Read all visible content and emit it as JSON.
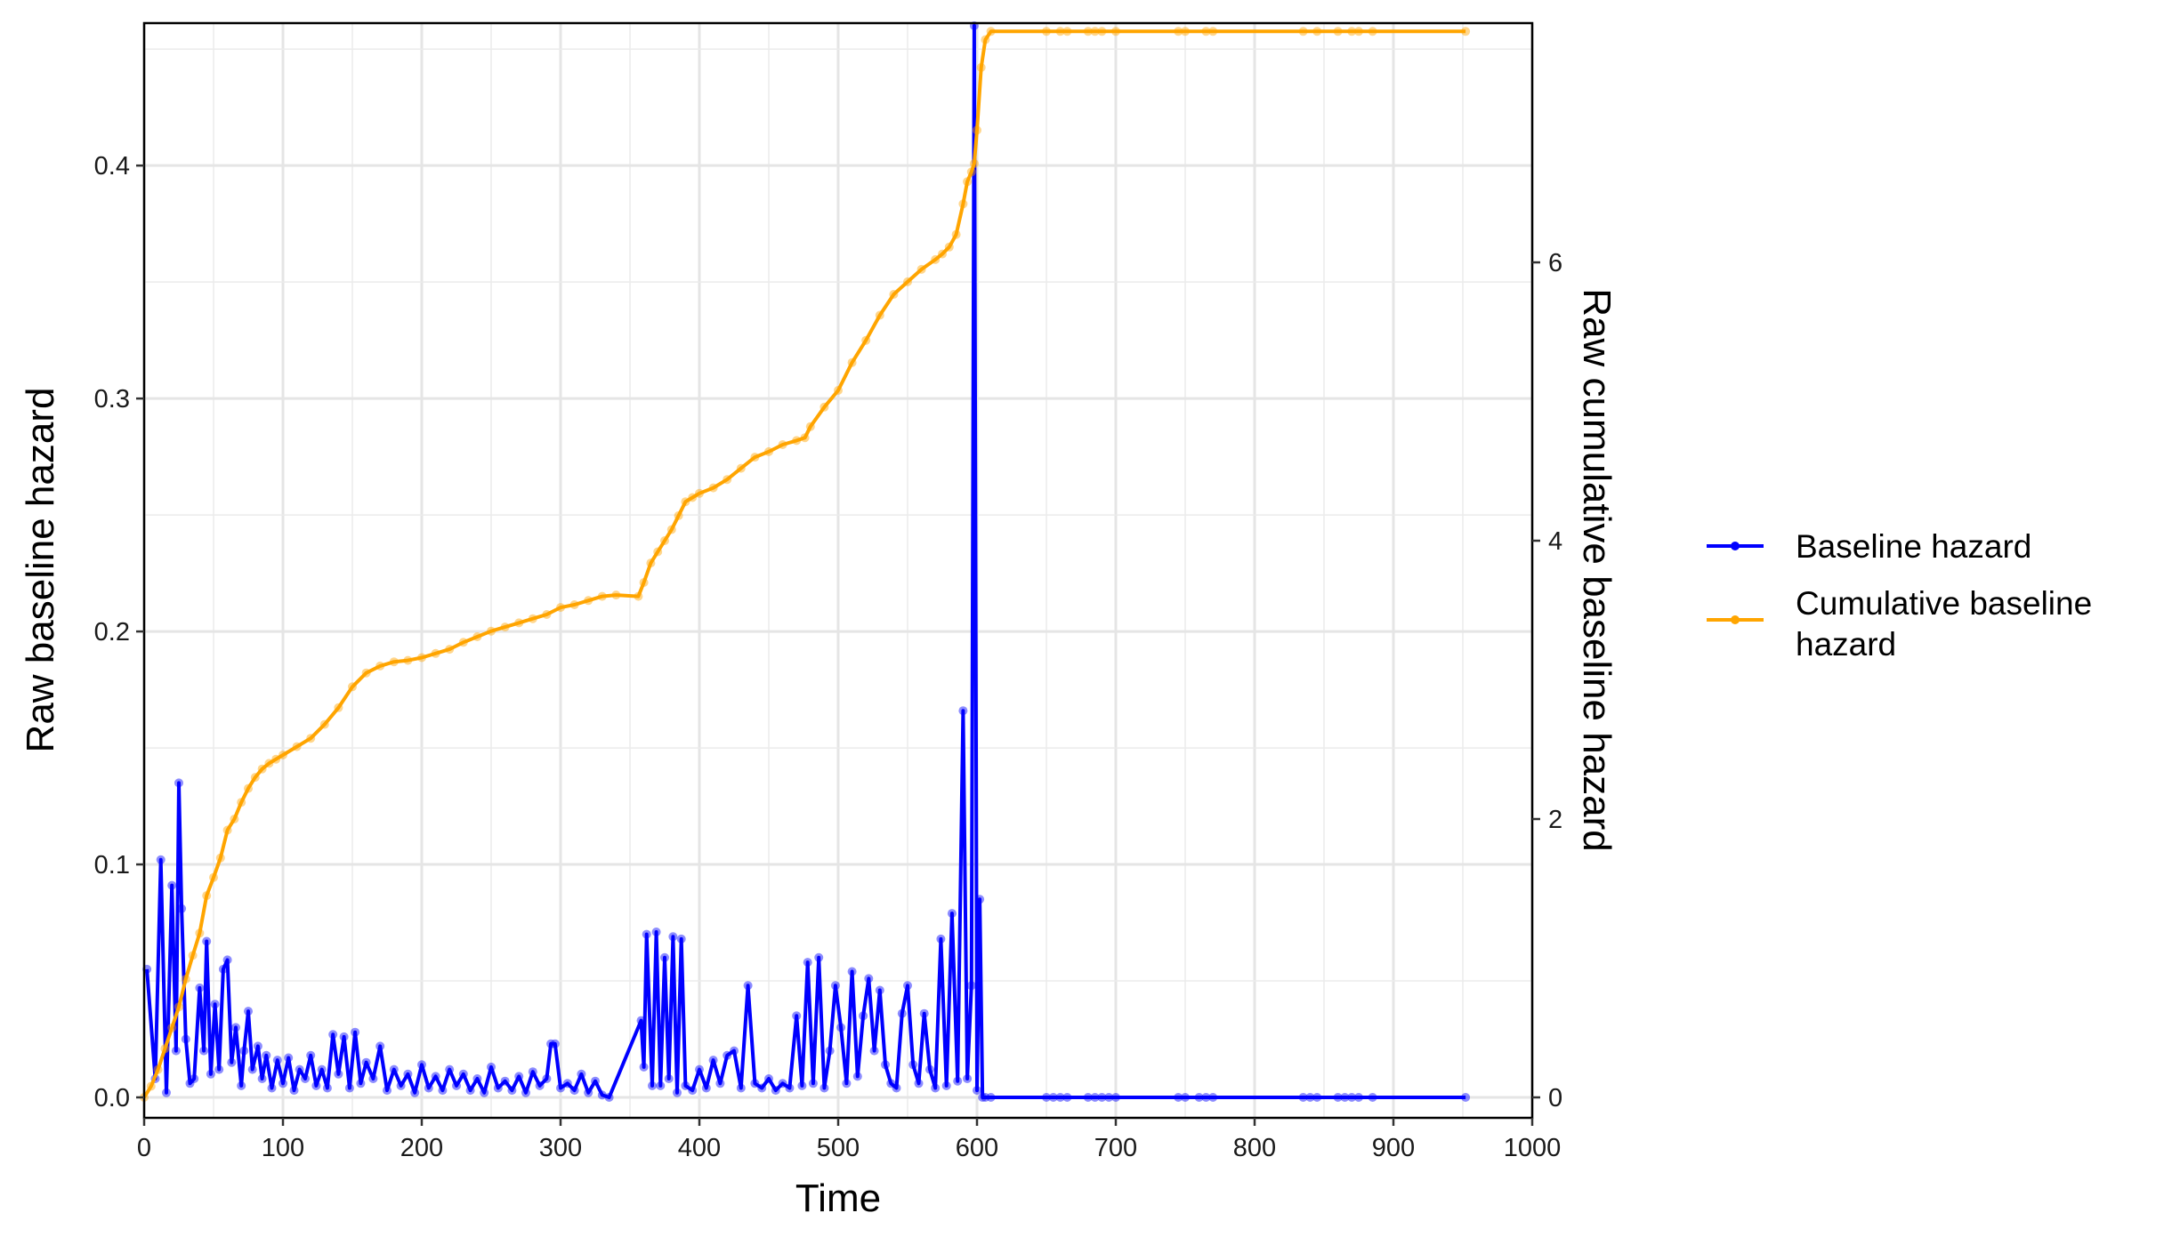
{
  "chart_data": {
    "type": "line",
    "title": "",
    "xlabel": "Time",
    "ylabel": "Raw baseline hazard",
    "y2label": "Raw cumulative baseline hazard",
    "xlim": [
      0,
      1000
    ],
    "ylim": [
      0,
      0.46
    ],
    "y2lim": [
      0,
      7.7
    ],
    "x_ticks": [
      0,
      100,
      200,
      300,
      400,
      500,
      600,
      700,
      800,
      900,
      1000
    ],
    "y_ticks": [
      0.0,
      0.1,
      0.2,
      0.3,
      0.4
    ],
    "y_tick_labels": [
      "0.0",
      "0.1",
      "0.2",
      "0.3",
      "0.4"
    ],
    "y2_ticks": [
      0,
      2,
      4,
      6
    ],
    "grid": true,
    "legend_position": "right",
    "series": [
      {
        "name": "Baseline hazard",
        "axis": "left",
        "color": "#0000ff",
        "x": [
          2,
          8,
          12,
          16,
          20,
          23,
          25,
          27,
          30,
          33,
          36,
          40,
          43,
          45,
          48,
          51,
          54,
          57,
          60,
          63,
          66,
          70,
          72,
          75,
          78,
          82,
          85,
          88,
          92,
          96,
          100,
          104,
          108,
          112,
          116,
          120,
          124,
          128,
          132,
          136,
          140,
          144,
          148,
          152,
          156,
          160,
          165,
          170,
          175,
          180,
          185,
          190,
          195,
          200,
          205,
          210,
          215,
          220,
          225,
          230,
          235,
          240,
          245,
          250,
          255,
          260,
          265,
          270,
          275,
          280,
          285,
          290,
          293,
          296,
          300,
          305,
          310,
          315,
          320,
          325,
          330,
          335,
          358,
          360,
          362,
          366,
          369,
          372,
          375,
          378,
          381,
          384,
          387,
          390,
          395,
          400,
          405,
          410,
          415,
          420,
          425,
          430,
          435,
          440,
          445,
          450,
          455,
          460,
          465,
          470,
          474,
          478,
          482,
          486,
          490,
          494,
          498,
          502,
          506,
          510,
          514,
          518,
          522,
          526,
          530,
          534,
          538,
          542,
          546,
          550,
          554,
          558,
          562,
          566,
          570,
          574,
          578,
          582,
          586,
          590,
          593,
          596,
          598,
          600,
          602,
          604,
          606,
          610,
          650,
          655,
          660,
          665,
          680,
          685,
          690,
          695,
          700,
          745,
          750,
          760,
          765,
          770,
          835,
          840,
          845,
          860,
          865,
          870,
          875,
          885,
          952
        ],
        "y": [
          0.055,
          0.008,
          0.102,
          0.002,
          0.091,
          0.02,
          0.135,
          0.081,
          0.025,
          0.006,
          0.008,
          0.047,
          0.02,
          0.067,
          0.01,
          0.04,
          0.012,
          0.055,
          0.059,
          0.015,
          0.03,
          0.005,
          0.02,
          0.037,
          0.012,
          0.022,
          0.008,
          0.018,
          0.004,
          0.016,
          0.006,
          0.017,
          0.003,
          0.012,
          0.008,
          0.018,
          0.005,
          0.012,
          0.004,
          0.027,
          0.01,
          0.026,
          0.004,
          0.028,
          0.006,
          0.015,
          0.008,
          0.022,
          0.003,
          0.012,
          0.005,
          0.01,
          0.002,
          0.014,
          0.004,
          0.009,
          0.003,
          0.012,
          0.005,
          0.01,
          0.003,
          0.008,
          0.002,
          0.013,
          0.004,
          0.007,
          0.003,
          0.009,
          0.002,
          0.011,
          0.005,
          0.008,
          0.023,
          0.023,
          0.004,
          0.006,
          0.003,
          0.01,
          0.002,
          0.007,
          0.001,
          0.0,
          0.033,
          0.013,
          0.07,
          0.005,
          0.071,
          0.005,
          0.06,
          0.008,
          0.069,
          0.002,
          0.068,
          0.005,
          0.003,
          0.012,
          0.004,
          0.016,
          0.006,
          0.018,
          0.02,
          0.004,
          0.048,
          0.006,
          0.004,
          0.008,
          0.003,
          0.006,
          0.004,
          0.035,
          0.005,
          0.058,
          0.006,
          0.06,
          0.004,
          0.02,
          0.048,
          0.03,
          0.006,
          0.054,
          0.009,
          0.035,
          0.051,
          0.02,
          0.046,
          0.014,
          0.006,
          0.004,
          0.036,
          0.048,
          0.014,
          0.006,
          0.036,
          0.012,
          0.004,
          0.068,
          0.005,
          0.079,
          0.007,
          0.166,
          0.008,
          0.048,
          0.46,
          0.003,
          0.085,
          0.0,
          0.0,
          0.0,
          0.0,
          0.0,
          0.0,
          0.0,
          0.0,
          0.0,
          0.0,
          0.0,
          0.0,
          0.0,
          0.0,
          0.0,
          0.0,
          0.0,
          0.0,
          0.0,
          0.0,
          0.0,
          0.0,
          0.0,
          0.0,
          0.0,
          0.0
        ]
      },
      {
        "name": "Cumulative baseline hazard",
        "axis": "right",
        "color": "#ffa500",
        "x": [
          0,
          5,
          10,
          15,
          20,
          25,
          30,
          35,
          40,
          45,
          50,
          55,
          60,
          65,
          70,
          75,
          80,
          85,
          90,
          95,
          100,
          110,
          120,
          130,
          140,
          150,
          160,
          170,
          180,
          190,
          200,
          210,
          220,
          230,
          240,
          250,
          260,
          270,
          280,
          290,
          300,
          310,
          320,
          330,
          340,
          356,
          360,
          365,
          370,
          375,
          380,
          385,
          390,
          395,
          400,
          410,
          420,
          430,
          440,
          450,
          460,
          470,
          476,
          480,
          490,
          500,
          510,
          520,
          530,
          540,
          550,
          560,
          570,
          575,
          580,
          585,
          590,
          593,
          596,
          598,
          600,
          603,
          606,
          610,
          650,
          660,
          665,
          680,
          685,
          690,
          700,
          745,
          750,
          765,
          770,
          835,
          845,
          860,
          870,
          875,
          885,
          952
        ],
        "y": [
          0.0,
          0.08,
          0.2,
          0.35,
          0.5,
          0.65,
          0.85,
          1.02,
          1.18,
          1.45,
          1.58,
          1.72,
          1.92,
          2.0,
          2.12,
          2.22,
          2.3,
          2.36,
          2.4,
          2.43,
          2.46,
          2.52,
          2.58,
          2.68,
          2.8,
          2.95,
          3.05,
          3.1,
          3.13,
          3.14,
          3.16,
          3.19,
          3.22,
          3.27,
          3.31,
          3.35,
          3.38,
          3.41,
          3.44,
          3.47,
          3.52,
          3.54,
          3.57,
          3.6,
          3.61,
          3.6,
          3.7,
          3.84,
          3.92,
          4.0,
          4.08,
          4.18,
          4.28,
          4.31,
          4.34,
          4.38,
          4.44,
          4.52,
          4.6,
          4.64,
          4.69,
          4.72,
          4.74,
          4.82,
          4.96,
          5.08,
          5.28,
          5.44,
          5.62,
          5.77,
          5.86,
          5.95,
          6.02,
          6.06,
          6.11,
          6.2,
          6.42,
          6.58,
          6.65,
          6.71,
          6.95,
          7.4,
          7.6,
          7.66,
          7.66,
          7.66,
          7.66,
          7.66,
          7.66,
          7.66,
          7.66,
          7.66,
          7.66,
          7.66,
          7.66,
          7.66,
          7.66,
          7.66,
          7.66,
          7.66,
          7.66,
          7.66
        ]
      }
    ]
  }
}
